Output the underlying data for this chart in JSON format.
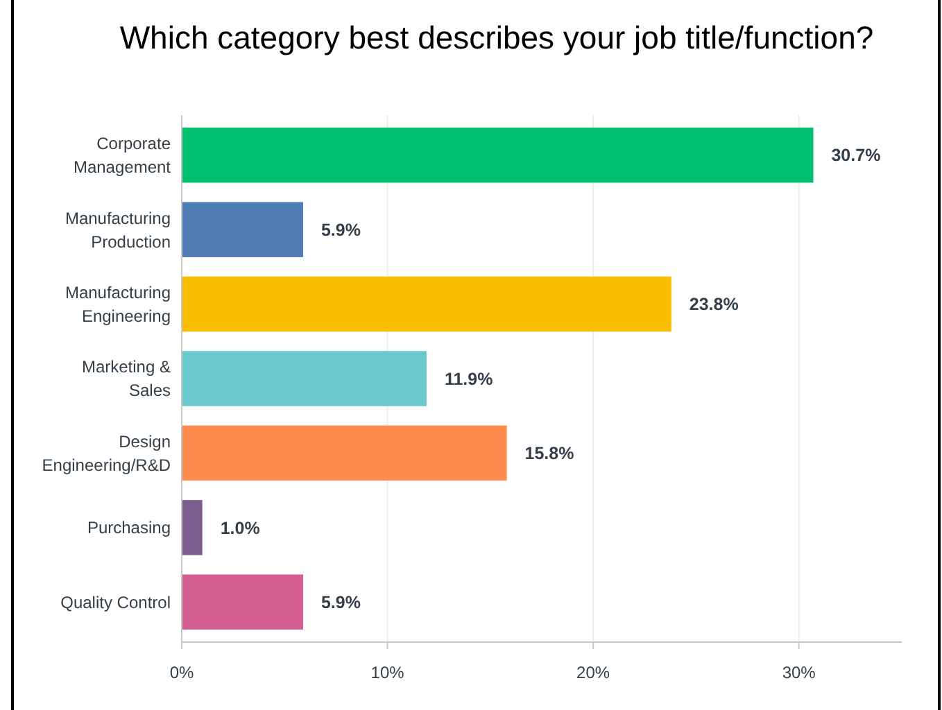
{
  "chart_data": {
    "type": "bar",
    "orientation": "horizontal",
    "title": "Which category best describes your job title/function?",
    "categories": [
      "Corporate Management",
      "Manufacturing Production",
      "Manufacturing Engineering",
      "Marketing & Sales",
      "Design Engineering/R&D",
      "Purchasing",
      "Quality Control"
    ],
    "values": [
      30.7,
      5.9,
      23.8,
      11.9,
      15.8,
      1.0,
      5.9
    ],
    "colors": [
      "#00bf6f",
      "#507cb6",
      "#f9be00",
      "#6bc8cd",
      "#ff8b4f",
      "#7d5e90",
      "#d25f90"
    ],
    "value_labels": [
      "30.7%",
      "5.9%",
      "23.8%",
      "11.9%",
      "15.8%",
      "1.0%",
      "5.9%"
    ],
    "xlim": [
      0,
      35
    ],
    "xticks": [
      {
        "value": 0,
        "label": "0%"
      },
      {
        "value": 10,
        "label": "10%"
      },
      {
        "value": 20,
        "label": "20%"
      },
      {
        "value": 30,
        "label": "30%"
      }
    ],
    "grid": "x"
  }
}
